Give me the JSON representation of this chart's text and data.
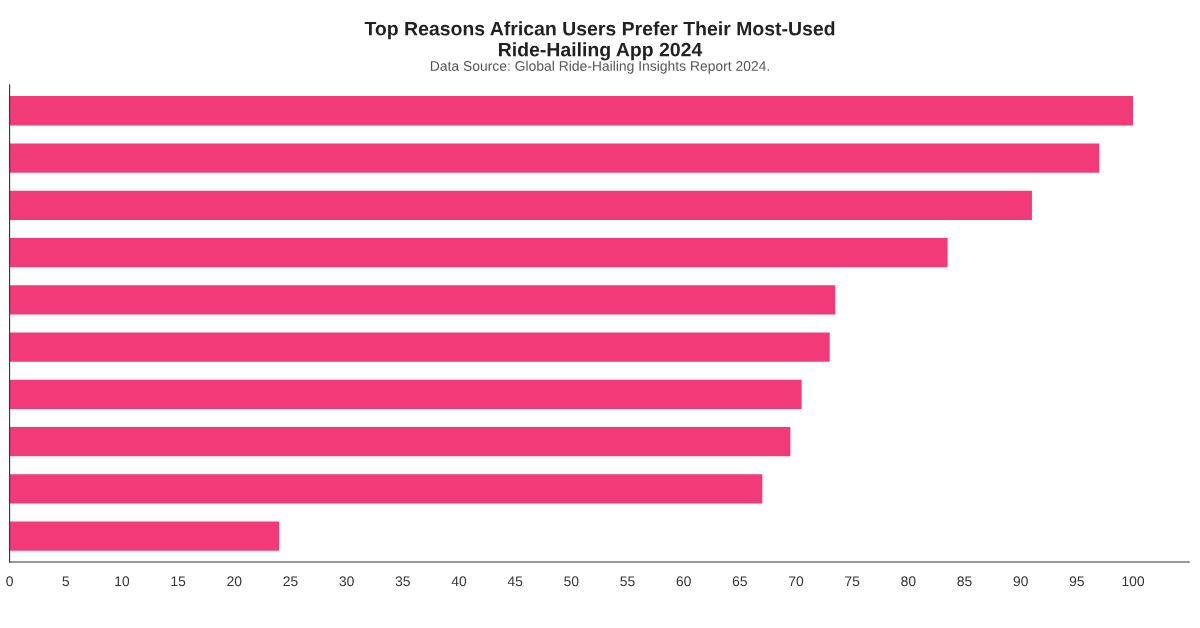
{
  "chart_data": {
    "type": "bar",
    "orientation": "horizontal",
    "title": "Top Reasons African Users Prefer Their Most-Used\nRide-Hailing App 2024",
    "subtitle": "Data Source: Global Ride-Hailing Insights Report 2024.",
    "categories": [
      null,
      null,
      null,
      null,
      null,
      null,
      null,
      null,
      null,
      null
    ],
    "values": [
      100,
      97,
      91,
      83.5,
      73.5,
      73,
      70.5,
      69.5,
      67,
      24
    ],
    "color": "#f23a78",
    "xlim": [
      0,
      105
    ],
    "xticks": [
      0,
      5,
      10,
      15,
      20,
      25,
      30,
      35,
      40,
      45,
      50,
      55,
      60,
      65,
      70,
      75,
      80,
      85,
      90,
      95,
      100
    ],
    "grid": false,
    "legend": false
  }
}
